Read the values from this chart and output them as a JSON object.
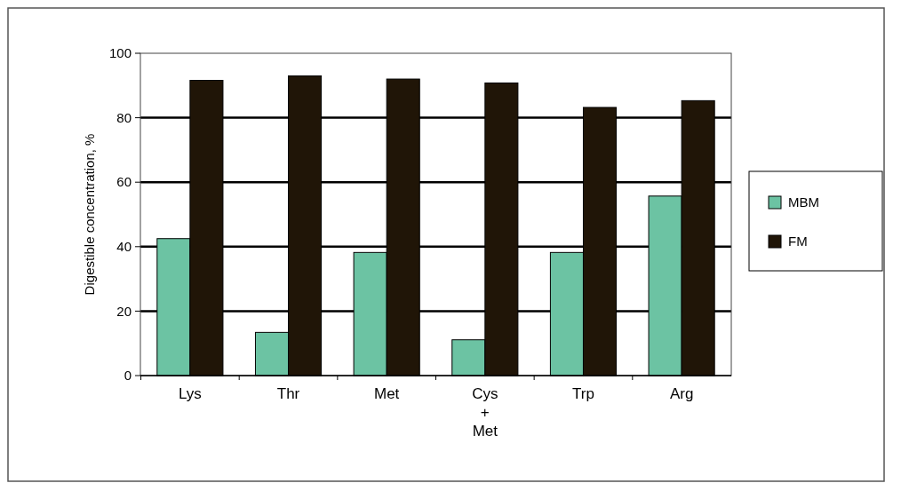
{
  "chart_data": {
    "type": "bar",
    "ylabel": "Digestible concentration, %",
    "categories": [
      "Lys",
      "Thr",
      "Met",
      "Cys\n+\nMet",
      "Trp",
      "Arg"
    ],
    "series": [
      {
        "name": "MBM",
        "color": "#6cc3a3",
        "values": [
          42.5,
          13.4,
          38.2,
          11.1,
          38.2,
          55.7
        ]
      },
      {
        "name": "FM",
        "color": "#201507",
        "values": [
          91.6,
          93,
          92,
          90.8,
          83.2,
          85.3
        ]
      }
    ],
    "ylim": [
      0,
      100
    ],
    "yticks": [
      0,
      20,
      40,
      60,
      80,
      100
    ],
    "grid": "y",
    "legend": "right"
  }
}
